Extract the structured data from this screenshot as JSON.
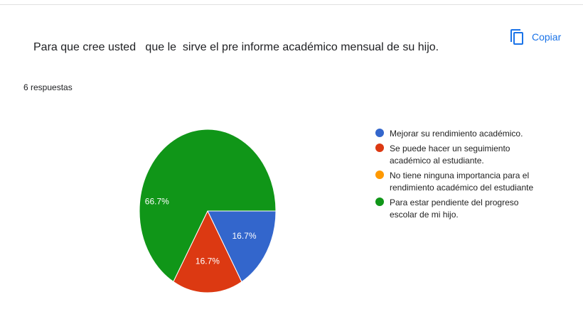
{
  "copy_button": "Copiar",
  "chart_data": {
    "type": "pie",
    "title": "Para que cree usted   que le  sirve el pre informe académico mensual de su hijo.",
    "subtitle": "6 respuestas",
    "categories": [
      "Mejorar su rendimiento académico.",
      "Se puede hacer un seguimiento académico al estudiante.",
      "No tiene ninguna importancia para el rendimiento académico del estudiante",
      "Para estar pendiente del progreso escolar de mi hijo."
    ],
    "values": [
      16.7,
      16.7,
      0,
      66.7
    ],
    "value_labels": [
      "16.7%",
      "16.7%",
      null,
      "66.7%"
    ],
    "colors": [
      "#3366cc",
      "#dc3912",
      "#ff9900",
      "#109618"
    ]
  }
}
